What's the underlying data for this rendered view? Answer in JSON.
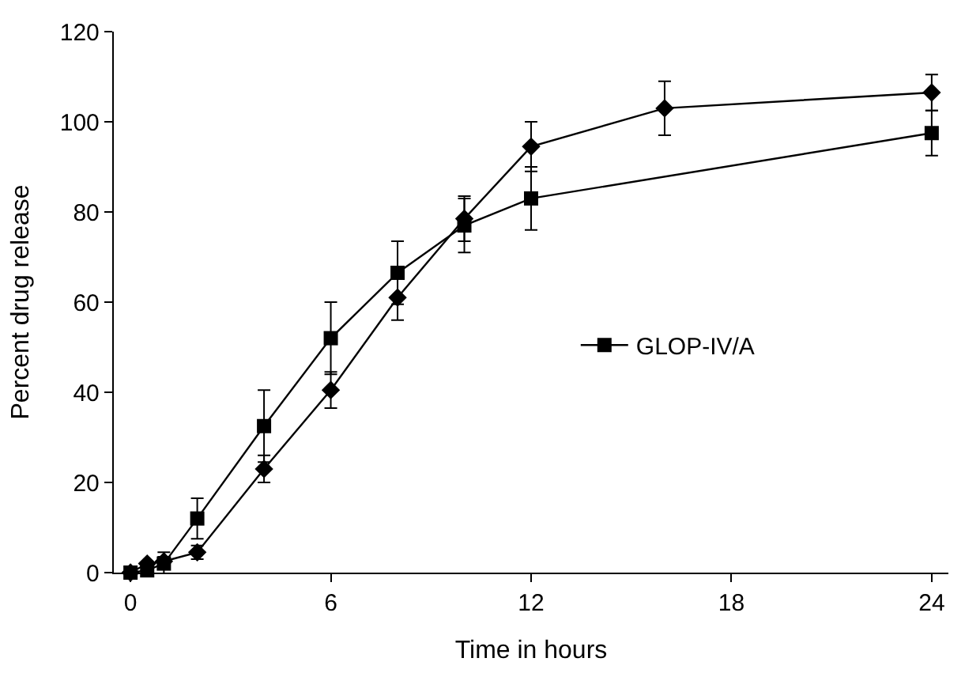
{
  "chart_data": {
    "type": "line",
    "xlabel": "Time in hours",
    "ylabel": "Percent drug release",
    "xlim": [
      -0.5,
      24.5
    ],
    "xticks": [
      0,
      6,
      12,
      18,
      24
    ],
    "ylim": [
      0,
      120
    ],
    "yticks": [
      0,
      20,
      40,
      60,
      80,
      100,
      120
    ],
    "legend": "right",
    "series": [
      {
        "color": "#000000",
        "marker": "diamond",
        "x": [
          0,
          0.5,
          1,
          2,
          4,
          6,
          8,
          10,
          12,
          16,
          24
        ],
        "values": [
          0,
          2,
          2.5,
          4.5,
          23,
          40.5,
          61,
          78.5,
          94.5,
          103,
          106.5
        ],
        "errors": [
          null,
          null,
          1,
          1.5,
          3,
          4,
          5,
          5,
          5.5,
          6,
          4
        ]
      },
      {
        "name": "GLOP-IV/A",
        "color": "#000000",
        "marker": "square",
        "x": [
          0,
          0.5,
          1,
          2,
          4,
          6,
          8,
          10,
          12,
          24
        ],
        "values": [
          0,
          0.5,
          2,
          12,
          32.5,
          52,
          66.5,
          77,
          83,
          97.5
        ],
        "errors": [
          null,
          null,
          2.5,
          4.5,
          8,
          8,
          7,
          6,
          7,
          5
        ]
      }
    ]
  }
}
